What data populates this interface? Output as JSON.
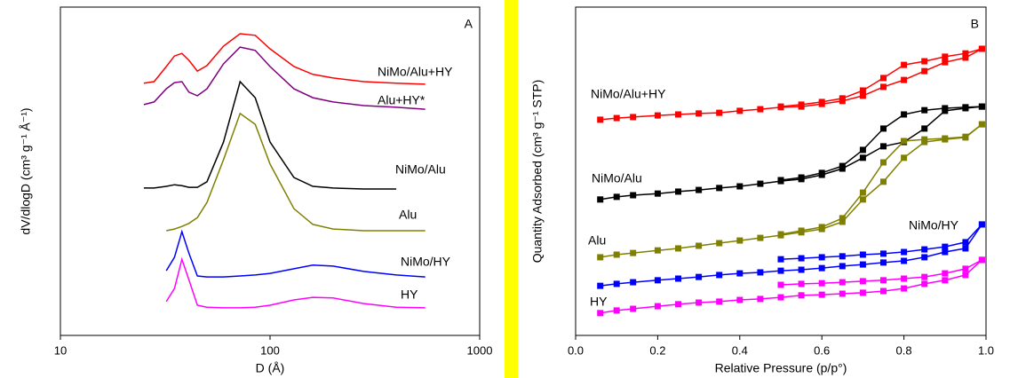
{
  "chart_data": [
    {
      "type": "line",
      "panel_label": "A",
      "xlabel": "D (Å)",
      "ylabel": "dV/dlogD (cm³ g⁻¹ Å⁻¹)",
      "xscale": "log",
      "xlim": [
        10,
        1000
      ],
      "xticks": [
        10,
        100,
        1000
      ],
      "ylim": [
        0,
        100
      ],
      "x": [
        25,
        28,
        32,
        35,
        38,
        41,
        45,
        50,
        60,
        72,
        85,
        100,
        130,
        160,
        200,
        280,
        400,
        550
      ],
      "series": [
        {
          "name": "NiMo/Alu+HY",
          "color": "#ff0000",
          "values": [
            76.8,
            77.3,
            81.9,
            85.1,
            85.9,
            83.8,
            80.5,
            82.2,
            88.1,
            91.9,
            91.4,
            87.3,
            81.9,
            79.5,
            78.4,
            77.3,
            76.8,
            76.5
          ]
        },
        {
          "name": "Alu+HY*",
          "color": "#800080",
          "values": [
            70.3,
            71.1,
            75.1,
            77.0,
            77.3,
            74.1,
            73.0,
            75.1,
            82.7,
            87.8,
            86.8,
            81.9,
            75.1,
            72.4,
            71.1,
            70.0,
            69.5,
            68.9
          ]
        },
        {
          "name": "NiMo/Alu",
          "color": "#000000",
          "values": [
            44.9,
            44.9,
            45.4,
            45.9,
            45.6,
            45.1,
            45.1,
            46.8,
            58.9,
            77.3,
            72.4,
            58.9,
            48.1,
            45.4,
            44.9,
            44.6,
            44.6,
            null
          ]
        },
        {
          "name": "Alu",
          "color": "#808000",
          "values": [
            null,
            null,
            31.9,
            32.4,
            33.2,
            34.1,
            35.9,
            40.5,
            53.5,
            67.6,
            64.3,
            52.2,
            38.6,
            33.8,
            32.4,
            31.9,
            31.9,
            31.9
          ]
        },
        {
          "name": "NiMo/HY",
          "color": "#0000ff",
          "values": [
            null,
            null,
            19.7,
            23.8,
            31.6,
            25.1,
            18.1,
            17.8,
            17.8,
            18.1,
            18.4,
            18.9,
            20.3,
            21.4,
            21.1,
            19.5,
            18.4,
            17.8
          ]
        },
        {
          "name": "HY",
          "color": "#ff00ff",
          "values": [
            null,
            null,
            10.3,
            14.3,
            23.2,
            17.0,
            9.2,
            8.6,
            8.4,
            8.4,
            8.6,
            9.2,
            10.8,
            11.6,
            11.4,
            9.7,
            8.6,
            8.4
          ]
        }
      ]
    },
    {
      "type": "line",
      "marker": "square",
      "panel_label": "B",
      "xlabel": "Relative Pressure (p/p°)",
      "ylabel": "Quantity Adsorbed (cm³ g⁻¹ STP)",
      "xlim": [
        0,
        1
      ],
      "xticks": [
        {
          "value": 0,
          "label": "0.0"
        },
        0.2,
        0.4,
        0.6,
        0.8,
        {
          "value": 1,
          "label": "1.0"
        }
      ],
      "ylim": [
        0,
        100
      ],
      "x": [
        0.06,
        0.1,
        0.14,
        0.2,
        0.25,
        0.3,
        0.35,
        0.4,
        0.45,
        0.5,
        0.55,
        0.6,
        0.65,
        0.7,
        0.75,
        0.8,
        0.85,
        0.9,
        0.95,
        0.99
      ],
      "series": [
        {
          "name": "NiMo/Alu+HY",
          "color": "#ff0000",
          "values": [
            65.7,
            66.2,
            66.5,
            67.0,
            67.3,
            67.6,
            67.8,
            68.4,
            68.9,
            69.5,
            69.7,
            70.5,
            71.4,
            73.0,
            75.7,
            77.8,
            80.5,
            83.2,
            84.6,
            87.3
          ],
          "desorption": [
            null,
            null,
            null,
            null,
            null,
            null,
            null,
            null,
            null,
            69.7,
            70.3,
            71.1,
            72.2,
            74.6,
            78.4,
            82.4,
            83.5,
            84.9,
            85.9,
            87.3
          ]
        },
        {
          "name": "NiMo/Alu",
          "color": "#000000",
          "values": [
            41.4,
            42.2,
            42.7,
            43.2,
            43.8,
            44.3,
            44.9,
            45.4,
            46.2,
            47.0,
            47.6,
            48.9,
            50.8,
            54.1,
            57.6,
            58.9,
            63.0,
            68.4,
            69.2,
            69.7
          ],
          "desorption": [
            null,
            null,
            null,
            null,
            null,
            null,
            null,
            null,
            null,
            47.3,
            48.1,
            49.5,
            51.6,
            56.5,
            63.0,
            67.3,
            68.6,
            69.2,
            69.5,
            69.7
          ]
        },
        {
          "name": "Alu",
          "color": "#808000",
          "values": [
            23.8,
            24.6,
            25.1,
            25.9,
            26.5,
            27.3,
            28.1,
            28.9,
            29.7,
            30.5,
            31.4,
            32.4,
            34.6,
            41.4,
            46.8,
            54.1,
            58.9,
            59.7,
            60.3,
            64.3
          ],
          "desorption": [
            null,
            null,
            null,
            null,
            null,
            null,
            null,
            null,
            null,
            30.8,
            31.9,
            33.0,
            35.7,
            43.5,
            52.7,
            59.2,
            59.7,
            60.0,
            60.5,
            64.3
          ]
        },
        {
          "name": "NiMo/HY",
          "color": "#0000ff",
          "values": [
            15.1,
            15.7,
            16.2,
            16.8,
            17.3,
            17.8,
            18.4,
            18.9,
            19.2,
            19.7,
            20.0,
            20.5,
            21.1,
            21.6,
            22.2,
            22.7,
            23.8,
            25.4,
            26.5,
            33.8
          ],
          "desorption": [
            null,
            null,
            null,
            null,
            null,
            null,
            null,
            null,
            null,
            23.2,
            23.5,
            23.8,
            24.1,
            24.6,
            24.9,
            25.4,
            26.2,
            27.0,
            28.4,
            33.8
          ]
        },
        {
          "name": "HY",
          "color": "#ff00ff",
          "values": [
            6.8,
            7.6,
            8.1,
            8.9,
            9.5,
            10.0,
            10.3,
            10.8,
            11.1,
            11.6,
            12.2,
            12.4,
            12.7,
            13.0,
            13.5,
            14.3,
            15.7,
            16.8,
            18.4,
            23.0
          ],
          "desorption": [
            null,
            null,
            null,
            null,
            null,
            null,
            null,
            null,
            null,
            15.4,
            15.7,
            15.9,
            16.2,
            16.5,
            16.8,
            17.3,
            17.8,
            18.9,
            20.3,
            23.0
          ]
        }
      ]
    }
  ]
}
